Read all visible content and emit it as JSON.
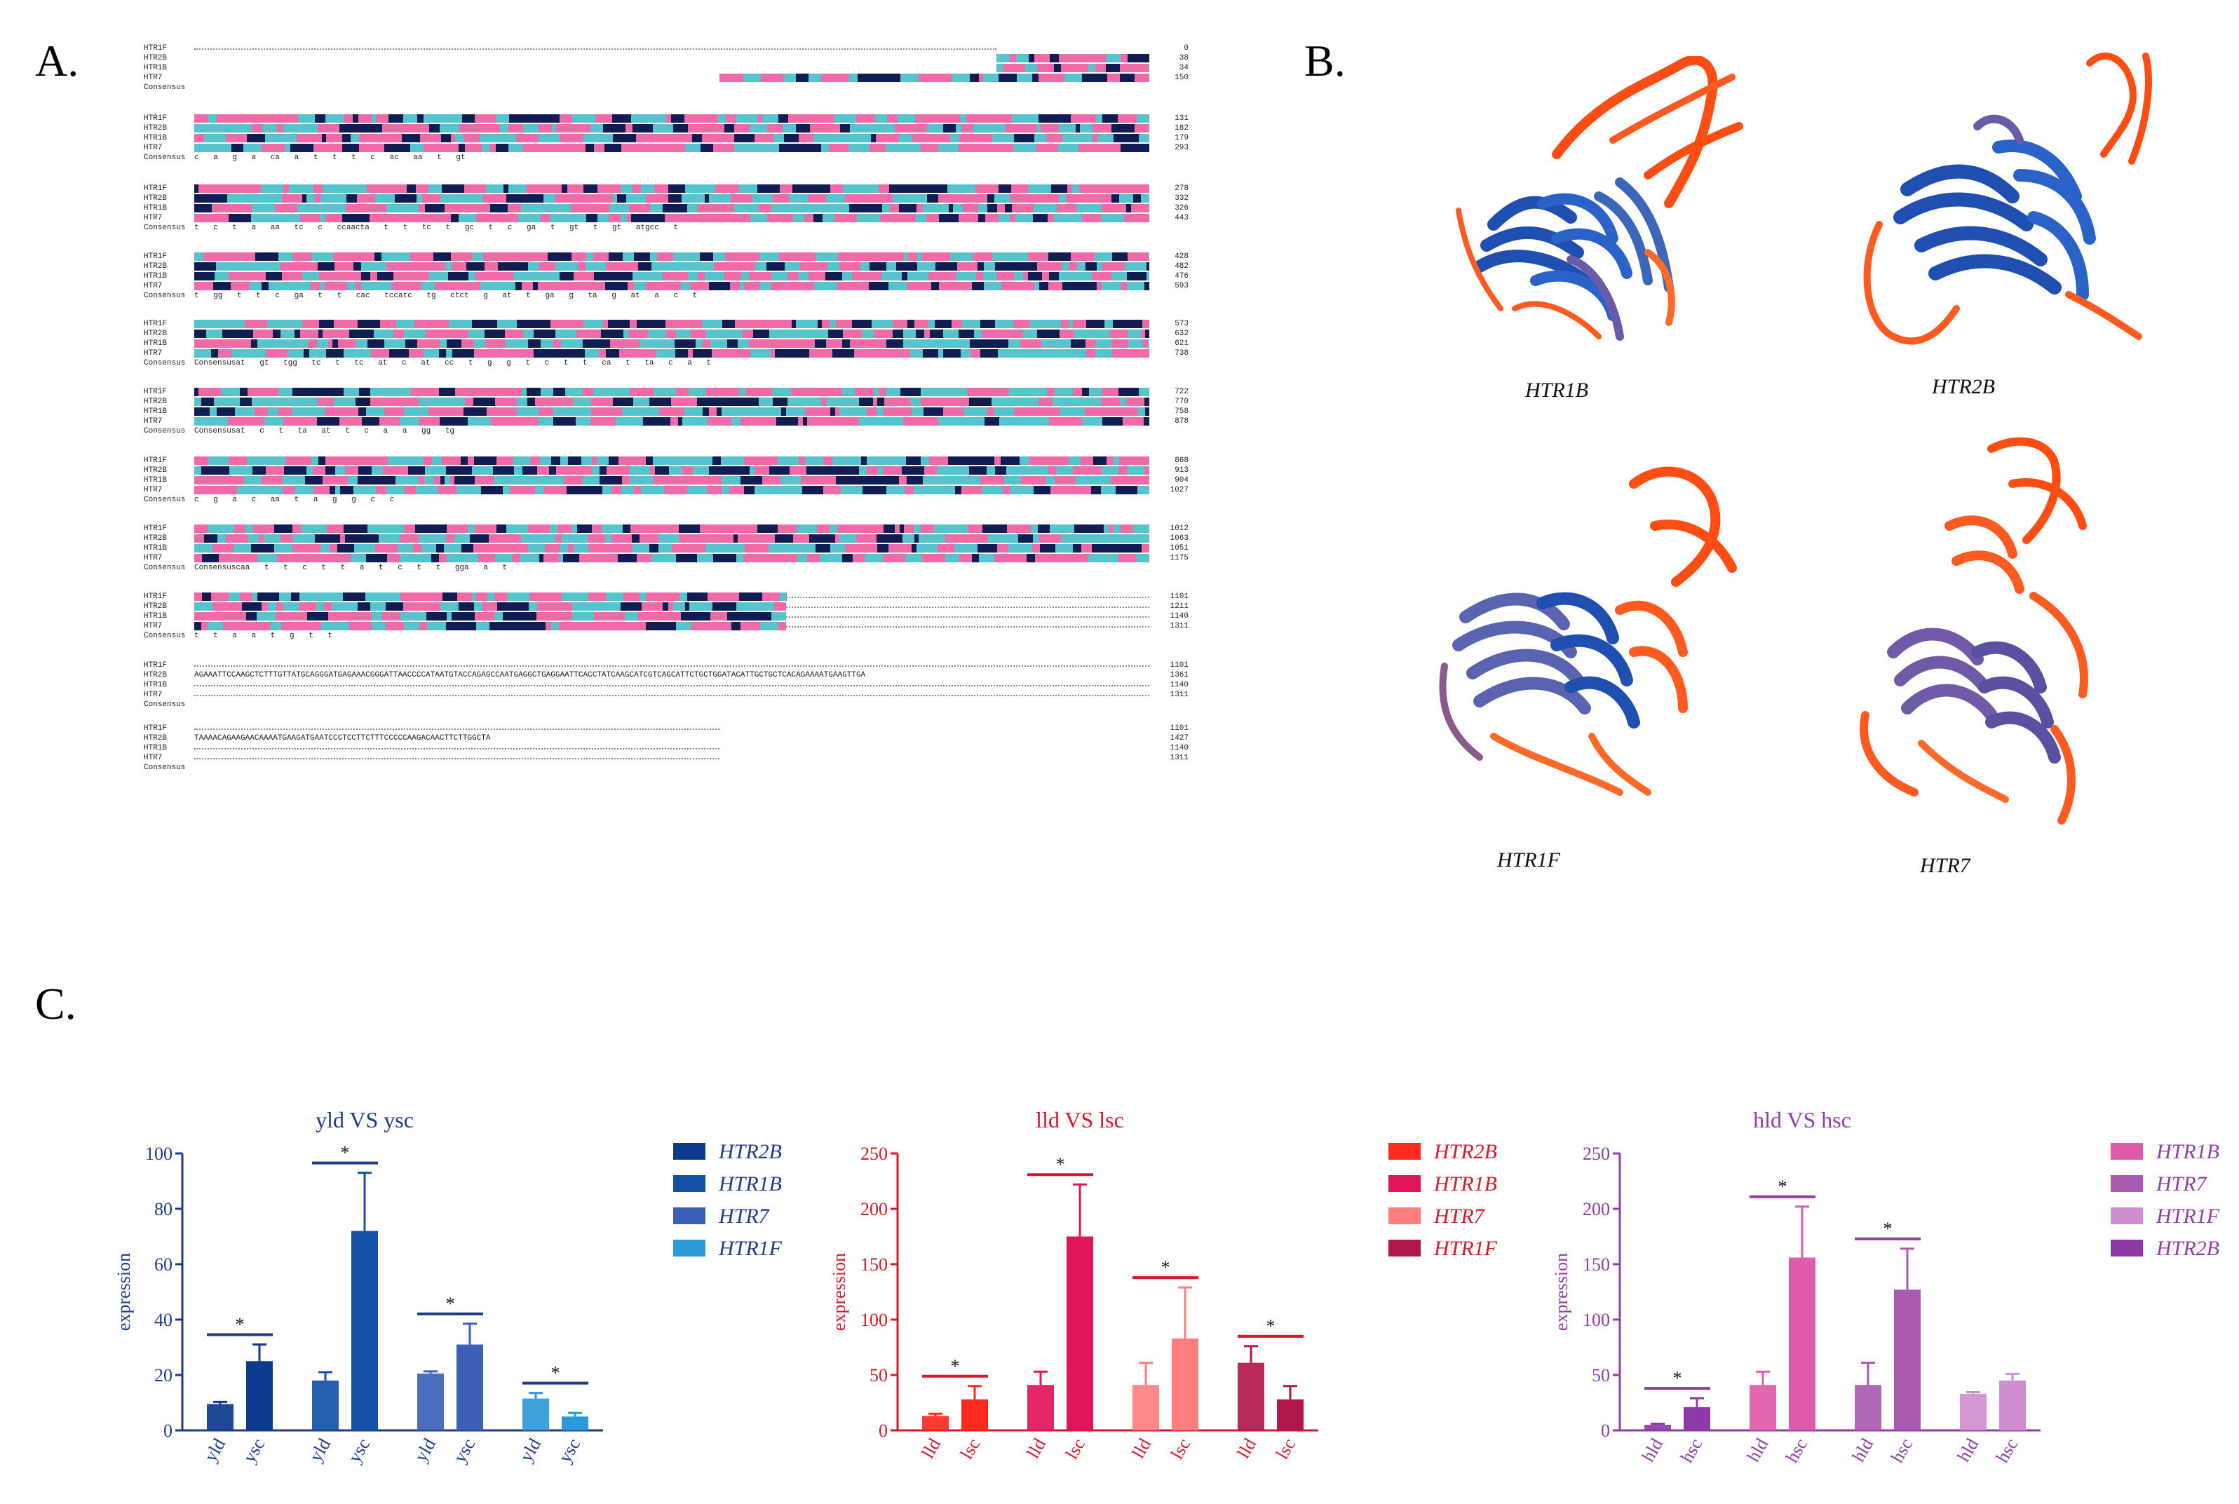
{
  "panel_labels": {
    "a": "A.",
    "b": "B.",
    "c": "C."
  },
  "alignment": {
    "sequences": [
      "HTR1F",
      "HTR2B",
      "HTR1B",
      "HTR7"
    ],
    "consensus_label": "Consensus",
    "blocks": [
      {
        "ends": [
          "0",
          "38",
          "34",
          "150"
        ],
        "consensus": ""
      },
      {
        "ends": [
          "131",
          "182",
          "179",
          "293"
        ],
        "consensus": "c a g a ca a t t t c ac aa t gt"
      },
      {
        "ends": [
          "278",
          "332",
          "326",
          "443"
        ],
        "consensus": "t c t a aa tc c ccaacta t t tc t gc t c ga t gt t gt atgcc t"
      },
      {
        "ends": [
          "428",
          "482",
          "476",
          "593"
        ],
        "consensus": "t gg t t c ga t t cac tccatc tg ctct g at t ga g ta g at a c t"
      },
      {
        "ends": [
          "573",
          "632",
          "621",
          "738"
        ],
        "consensus": "Consensusat gt tgg tc t tc at c at cc t g g t c t t ca t ta c a t"
      },
      {
        "ends": [
          "722",
          "770",
          "758",
          "878"
        ],
        "consensus": "Consensusat c t ta at t c a a gg tg"
      },
      {
        "ends": [
          "868",
          "913",
          "904",
          "1027"
        ],
        "consensus": "c g a c aa t a g g c c"
      },
      {
        "ends": [
          "1012",
          "1063",
          "1051",
          "1175"
        ],
        "consensus": "Consensuscaa t t c t t a t c t t gga a t"
      },
      {
        "ends": [
          "1101",
          "1211",
          "1140",
          "1311"
        ],
        "consensus": "t t a a t g t t"
      },
      {
        "ends": [
          "1101",
          "1361",
          "1140",
          "1311"
        ],
        "consensus": ""
      },
      {
        "ends": [
          "1101",
          "1427",
          "1140",
          "1311"
        ],
        "consensus": ""
      }
    ],
    "tail_lines": {
      "b10_htr2b": "AGAAATTCCAAGCTCTTTGTTATGCAGGGATGAGAAACGGGATTAACCCCATAATGTACCAGAGCCAATGAGGCTGAGGAATTCACCTATCAAGCATCGTCAGCATTCTGCTGGATACATTGCTGCTCACAGAAAATGAAGTTGA",
      "b11_htr2b": "TAAAACAGAAGAACAAAATGAAGATGAATCCCTCCTTCTTTCCCCCAAGACAACTTCTTGGCTA"
    }
  },
  "structures": {
    "labels": [
      "HTR1B",
      "HTR2B",
      "HTR1F",
      "HTR7"
    ]
  },
  "charts": [
    {
      "title": "yld VS ysc",
      "ylabel": "expression",
      "yticks": [
        "0",
        "20",
        "40",
        "60",
        "80",
        "100"
      ],
      "ymax": 100,
      "axis_color": "#1e3a8a",
      "legend": [
        {
          "name": "HTR2B",
          "color": "#0d3a8c"
        },
        {
          "name": "HTR1B",
          "color": "#1551a8"
        },
        {
          "name": "HTR7",
          "color": "#3d5fb8"
        },
        {
          "name": "HTR1F",
          "color": "#2c9ad8"
        }
      ],
      "chart_data": {
        "type": "bar",
        "title": "yld VS ysc",
        "ylabel": "expression",
        "ylim": [
          0,
          100
        ],
        "groups": [
          {
            "gene": "HTR2B",
            "bars": [
              {
                "label": "yld",
                "value": 9.5,
                "err": 0.8
              },
              {
                "label": "ysc",
                "value": 25,
                "err": 6
              }
            ],
            "significant": true
          },
          {
            "gene": "HTR1B",
            "bars": [
              {
                "label": "yld",
                "value": 18,
                "err": 3
              },
              {
                "label": "ysc",
                "value": 72,
                "err": 21
              }
            ],
            "significant": true
          },
          {
            "gene": "HTR7",
            "bars": [
              {
                "label": "yld",
                "value": 20.5,
                "err": 0.8
              },
              {
                "label": "ysc",
                "value": 31,
                "err": 7.5
              }
            ],
            "significant": true
          },
          {
            "gene": "HTR1F",
            "bars": [
              {
                "label": "yld",
                "value": 11.5,
                "err": 2
              },
              {
                "label": "ysc",
                "value": 5,
                "err": 1.3
              }
            ],
            "significant": true
          }
        ]
      }
    },
    {
      "title": "lld VS lsc",
      "ylabel": "expression",
      "yticks": [
        "0",
        "50",
        "100",
        "150",
        "200",
        "250"
      ],
      "ymax": 250,
      "axis_color": "#d6182b",
      "legend": [
        {
          "name": "HTR2B",
          "color": "#ff2a1f"
        },
        {
          "name": "HTR1B",
          "color": "#e0145a"
        },
        {
          "name": "HTR7",
          "color": "#ff7f7f"
        },
        {
          "name": "HTR1F",
          "color": "#b0174b"
        }
      ],
      "chart_data": {
        "type": "bar",
        "title": "lld VS lsc",
        "ylabel": "expression",
        "ylim": [
          0,
          250
        ],
        "groups": [
          {
            "gene": "HTR2B",
            "bars": [
              {
                "label": "lld",
                "value": 13,
                "err": 2
              },
              {
                "label": "lsc",
                "value": 28,
                "err": 12
              }
            ],
            "significant": true
          },
          {
            "gene": "HTR1B",
            "bars": [
              {
                "label": "lld",
                "value": 41,
                "err": 12
              },
              {
                "label": "lsc",
                "value": 175,
                "err": 47
              }
            ],
            "significant": true
          },
          {
            "gene": "HTR7",
            "bars": [
              {
                "label": "lld",
                "value": 41,
                "err": 20
              },
              {
                "label": "lsc",
                "value": 83,
                "err": 46
              }
            ],
            "significant": true
          },
          {
            "gene": "HTR1F",
            "bars": [
              {
                "label": "lld",
                "value": 61,
                "err": 15
              },
              {
                "label": "lsc",
                "value": 28,
                "err": 12
              }
            ],
            "significant": true
          }
        ]
      }
    },
    {
      "title": "hld VS hsc",
      "ylabel": "expression",
      "yticks": [
        "0",
        "50",
        "100",
        "150",
        "200",
        "250"
      ],
      "ymax": 250,
      "axis_color": "#8e3ea6",
      "legend": [
        {
          "name": "HTR1B",
          "color": "#df5aa8"
        },
        {
          "name": "HTR7",
          "color": "#a95ab0"
        },
        {
          "name": "HTR1F",
          "color": "#cf8ed0"
        },
        {
          "name": "HTR2B",
          "color": "#8e3aa6"
        }
      ],
      "chart_data": {
        "type": "bar",
        "title": "hld VS hsc",
        "ylabel": "expression",
        "ylim": [
          0,
          250
        ],
        "groups": [
          {
            "gene": "HTR2B",
            "bars": [
              {
                "label": "hld",
                "value": 5,
                "err": 1
              },
              {
                "label": "hsc",
                "value": 21,
                "err": 8
              }
            ],
            "significant": true
          },
          {
            "gene": "HTR1B",
            "bars": [
              {
                "label": "hld",
                "value": 41,
                "err": 12
              },
              {
                "label": "hsc",
                "value": 156,
                "err": 46
              }
            ],
            "significant": true
          },
          {
            "gene": "HTR7",
            "bars": [
              {
                "label": "hld",
                "value": 41,
                "err": 20
              },
              {
                "label": "hsc",
                "value": 127,
                "err": 37
              }
            ],
            "significant": true
          },
          {
            "gene": "HTR1F",
            "bars": [
              {
                "label": "hld",
                "value": 33,
                "err": 1.5
              },
              {
                "label": "hsc",
                "value": 45,
                "err": 6
              }
            ],
            "significant": false
          }
        ]
      }
    }
  ]
}
